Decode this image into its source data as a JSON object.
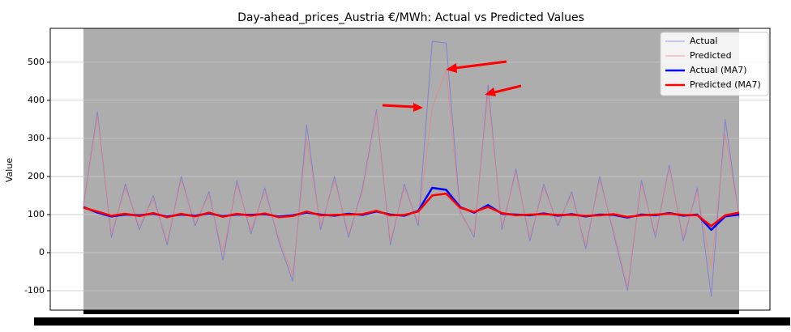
{
  "chart_data": {
    "type": "line",
    "title": "Day-ahead_prices_Austria €/MWh: Actual vs Predicted Values",
    "y_label": "Value",
    "categories": [
      null,
      null,
      null,
      null,
      null,
      null,
      null,
      null,
      null,
      null,
      null,
      null,
      null,
      null,
      null,
      null,
      null,
      null,
      null,
      null,
      null,
      null,
      null,
      null,
      null,
      null,
      null,
      null,
      null,
      null,
      null,
      null,
      null,
      null,
      null,
      null,
      null,
      null,
      null,
      null,
      null,
      null,
      null,
      null,
      null,
      null,
      null,
      null
    ],
    "series": [
      {
        "name": "Actual",
        "color": "#6f6fe0",
        "linewidth": 1,
        "values": [
          125,
          370,
          40,
          180,
          60,
          150,
          20,
          200,
          70,
          160,
          -20,
          190,
          50,
          170,
          30,
          -75,
          335,
          60,
          200,
          40,
          170,
          375,
          20,
          180,
          70,
          555,
          550,
          110,
          40,
          440,
          60,
          220,
          30,
          180,
          70,
          160,
          10,
          200,
          50,
          -100,
          190,
          40,
          230,
          30,
          170,
          -115,
          350,
          90
        ]
      },
      {
        "name": "Predicted",
        "color": "#ec7f7f",
        "linewidth": 1,
        "values": [
          120,
          360,
          50,
          170,
          70,
          140,
          30,
          190,
          80,
          150,
          0,
          180,
          60,
          160,
          40,
          -60,
          300,
          70,
          190,
          50,
          160,
          370,
          30,
          170,
          80,
          380,
          480,
          100,
          50,
          420,
          70,
          210,
          40,
          170,
          80,
          150,
          20,
          190,
          60,
          -90,
          180,
          50,
          220,
          40,
          160,
          -40,
          310,
          95
        ]
      },
      {
        "name": "Actual (MA7)",
        "color": "#0000ff",
        "linewidth": 2.5,
        "values": [
          120,
          105,
          95,
          100,
          98,
          102,
          95,
          100,
          97,
          103,
          96,
          100,
          99,
          101,
          95,
          98,
          105,
          100,
          97,
          102,
          99,
          108,
          100,
          97,
          110,
          170,
          165,
          120,
          105,
          125,
          102,
          100,
          98,
          103,
          97,
          101,
          95,
          100,
          99,
          92,
          100,
          98,
          104,
          97,
          100,
          60,
          95,
          100
        ]
      },
      {
        "name": "Predicted (MA7)",
        "color": "#ff0000",
        "linewidth": 2.5,
        "values": [
          118,
          108,
          97,
          102,
          96,
          104,
          93,
          102,
          95,
          105,
          94,
          102,
          97,
          103,
          93,
          96,
          108,
          98,
          99,
          100,
          101,
          110,
          98,
          99,
          108,
          150,
          155,
          118,
          107,
          120,
          104,
          98,
          100,
          101,
          99,
          99,
          97,
          98,
          101,
          94,
          98,
          100,
          102,
          99,
          98,
          70,
          98,
          105
        ]
      }
    ],
    "ylim": [
      -151,
      589
    ],
    "yticks": [
      -100,
      0,
      100,
      200,
      300,
      400,
      500
    ],
    "grid": true,
    "legend": "upper right"
  }
}
